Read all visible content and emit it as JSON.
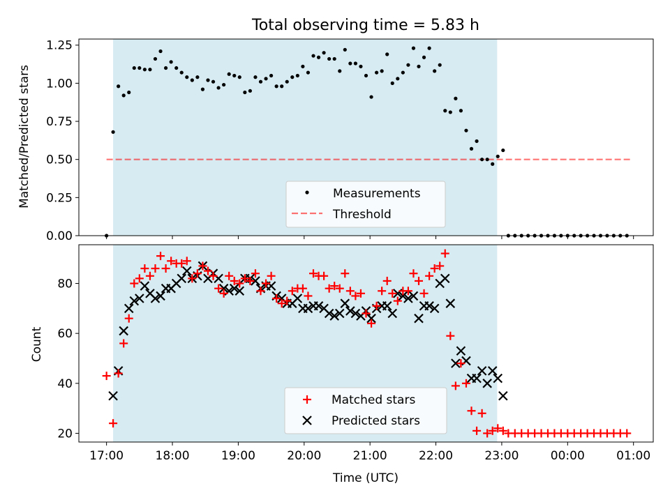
{
  "colors": {
    "observing_band": "#add8e6",
    "threshold": "#ff0000",
    "measurement": "#000000",
    "matched": "#ff0000",
    "predicted": "#000000",
    "axes": "#000000"
  },
  "chart_data": [
    {
      "type": "scatter",
      "title": "Total observing time = 5.83 h",
      "xlabel": "",
      "ylabel": "Matched/Predicted stars",
      "xlim": [
        -0.42,
        8.3
      ],
      "ylim": [
        0.0,
        1.29
      ],
      "xticks_hours": [
        0,
        1,
        2,
        3,
        4,
        5,
        6,
        7,
        8
      ],
      "xtick_labels_shown": false,
      "yticks": [
        0.0,
        0.25,
        0.5,
        0.75,
        1.0,
        1.25
      ],
      "ytick_labels": [
        "0.00",
        "0.25",
        "0.50",
        "0.75",
        "1.00",
        "1.25"
      ],
      "observing_window_hours": [
        0.1,
        5.93
      ],
      "threshold": 0.5,
      "threshold_x_range": [
        0.0,
        7.95
      ],
      "legend": {
        "placement": "lower-center",
        "entries": [
          {
            "label": "Measurements",
            "marker": "dot"
          },
          {
            "label": "Threshold",
            "marker": "dashed-line"
          }
        ]
      },
      "series": [
        {
          "name": "Measurements",
          "marker": "dot",
          "x_hours": [
            0.0,
            0.1,
            0.18,
            0.26,
            0.34,
            0.42,
            0.5,
            0.58,
            0.66,
            0.74,
            0.82,
            0.9,
            0.98,
            1.06,
            1.14,
            1.22,
            1.3,
            1.38,
            1.46,
            1.54,
            1.62,
            1.7,
            1.78,
            1.86,
            1.94,
            2.02,
            2.1,
            2.18,
            2.26,
            2.34,
            2.42,
            2.5,
            2.58,
            2.66,
            2.74,
            2.82,
            2.9,
            2.98,
            3.06,
            3.14,
            3.22,
            3.3,
            3.38,
            3.46,
            3.54,
            3.62,
            3.7,
            3.78,
            3.86,
            3.94,
            4.02,
            4.1,
            4.18,
            4.26,
            4.34,
            4.42,
            4.5,
            4.58,
            4.66,
            4.74,
            4.82,
            4.9,
            4.98,
            5.06,
            5.14,
            5.22,
            5.3,
            5.38,
            5.46,
            5.54,
            5.62,
            5.7,
            5.78,
            5.86,
            5.94,
            6.02,
            6.1,
            6.2,
            6.3,
            6.4,
            6.5,
            6.6,
            6.7,
            6.8,
            6.9,
            7.0,
            7.1,
            7.2,
            7.3,
            7.4,
            7.5,
            7.6,
            7.7,
            7.8,
            7.9
          ],
          "y": [
            0.0,
            0.68,
            0.98,
            0.92,
            0.94,
            1.1,
            1.1,
            1.09,
            1.09,
            1.16,
            1.21,
            1.1,
            1.14,
            1.1,
            1.07,
            1.04,
            1.02,
            1.04,
            0.96,
            1.02,
            1.01,
            0.97,
            0.99,
            1.06,
            1.05,
            1.04,
            0.94,
            0.95,
            1.04,
            1.01,
            1.03,
            1.05,
            0.98,
            0.98,
            1.01,
            1.04,
            1.05,
            1.11,
            1.07,
            1.18,
            1.17,
            1.2,
            1.16,
            1.16,
            1.08,
            1.22,
            1.13,
            1.13,
            1.11,
            1.05,
            0.91,
            1.07,
            1.08,
            1.19,
            1.0,
            1.03,
            1.07,
            1.12,
            1.23,
            1.11,
            1.17,
            1.23,
            1.08,
            1.12,
            0.82,
            0.81,
            0.9,
            0.82,
            0.69,
            0.57,
            0.62,
            0.5,
            0.5,
            0.47,
            0.52,
            0.56,
            0.0,
            0.0,
            0.0,
            0.0,
            0.0,
            0.0,
            0.0,
            0.0,
            0.0,
            0.0,
            0.0,
            0.0,
            0.0,
            0.0,
            0.0,
            0.0,
            0.0,
            0.0,
            0.0
          ]
        }
      ]
    },
    {
      "type": "scatter",
      "title": "",
      "xlabel": "Time (UTC)",
      "ylabel": "Count",
      "xlim": [
        -0.42,
        8.3
      ],
      "ylim": [
        16.5,
        95.5
      ],
      "xticks_hours": [
        0,
        1,
        2,
        3,
        4,
        5,
        6,
        7,
        8
      ],
      "xtick_labels": [
        "17:00",
        "18:00",
        "19:00",
        "20:00",
        "21:00",
        "22:00",
        "23:00",
        "00:00",
        "01:00"
      ],
      "yticks": [
        20,
        40,
        60,
        80
      ],
      "ytick_labels": [
        "20",
        "40",
        "60",
        "80"
      ],
      "observing_window_hours": [
        0.1,
        5.93
      ],
      "legend": {
        "placement": "lower-center",
        "entries": [
          {
            "label": "Matched stars",
            "marker": "plus"
          },
          {
            "label": "Predicted stars",
            "marker": "x"
          }
        ]
      },
      "x_hours": [
        0.0,
        0.1,
        0.18,
        0.26,
        0.34,
        0.42,
        0.5,
        0.58,
        0.66,
        0.74,
        0.82,
        0.9,
        0.98,
        1.06,
        1.14,
        1.22,
        1.3,
        1.38,
        1.46,
        1.54,
        1.62,
        1.7,
        1.78,
        1.86,
        1.94,
        2.02,
        2.1,
        2.18,
        2.26,
        2.34,
        2.42,
        2.5,
        2.58,
        2.66,
        2.74,
        2.82,
        2.9,
        2.98,
        3.06,
        3.14,
        3.22,
        3.3,
        3.38,
        3.46,
        3.54,
        3.62,
        3.7,
        3.78,
        3.86,
        3.94,
        4.02,
        4.1,
        4.18,
        4.26,
        4.34,
        4.42,
        4.5,
        4.58,
        4.66,
        4.74,
        4.82,
        4.9,
        4.98,
        5.06,
        5.14,
        5.22,
        5.3,
        5.38,
        5.46,
        5.54,
        5.62,
        5.7,
        5.78,
        5.86,
        5.94,
        6.02,
        6.1,
        6.2,
        6.3,
        6.4,
        6.5,
        6.6,
        6.7,
        6.8,
        6.9,
        7.0,
        7.1,
        7.2,
        7.3,
        7.4,
        7.5,
        7.6,
        7.7,
        7.8,
        7.9
      ],
      "series": [
        {
          "name": "Matched stars",
          "marker": "plus",
          "y": [
            43,
            24,
            44,
            56,
            66,
            80,
            82,
            86,
            83,
            86,
            91,
            86,
            89,
            88,
            88,
            89,
            82,
            84,
            87,
            85,
            83,
            78,
            76,
            83,
            81,
            80,
            82,
            81,
            84,
            77,
            80,
            83,
            74,
            72,
            73,
            77,
            78,
            78,
            75,
            84,
            83,
            83,
            78,
            79,
            78,
            84,
            77,
            75,
            76,
            68,
            64,
            71,
            77,
            81,
            76,
            73,
            77,
            77,
            84,
            81,
            76,
            83,
            86,
            87,
            92,
            59,
            39,
            48,
            40,
            29,
            21,
            28,
            20,
            21,
            22,
            21,
            20,
            20,
            20,
            20,
            20,
            20,
            20,
            20,
            20,
            20,
            20,
            20,
            20,
            20,
            20,
            20,
            20,
            20,
            20
          ]
        },
        {
          "name": "Predicted stars",
          "marker": "x",
          "y": [
            null,
            35,
            45,
            61,
            70,
            73,
            74,
            79,
            76,
            74,
            75,
            78,
            78,
            80,
            82,
            85,
            82,
            83,
            87,
            82,
            84,
            82,
            78,
            77,
            78,
            77,
            82,
            82,
            81,
            78,
            79,
            79,
            75,
            74,
            72,
            72,
            74,
            70,
            70,
            71,
            71,
            70,
            68,
            67,
            68,
            72,
            69,
            68,
            67,
            69,
            66,
            70,
            71,
            71,
            68,
            76,
            75,
            74,
            75,
            66,
            71,
            71,
            70,
            80,
            82,
            72,
            48,
            53,
            49,
            42,
            42,
            45,
            40,
            45,
            42,
            35,
            null,
            null,
            null,
            null,
            null,
            null,
            null,
            null,
            null,
            null,
            null,
            null,
            null,
            null,
            null,
            null,
            null,
            null,
            null
          ]
        }
      ]
    }
  ]
}
